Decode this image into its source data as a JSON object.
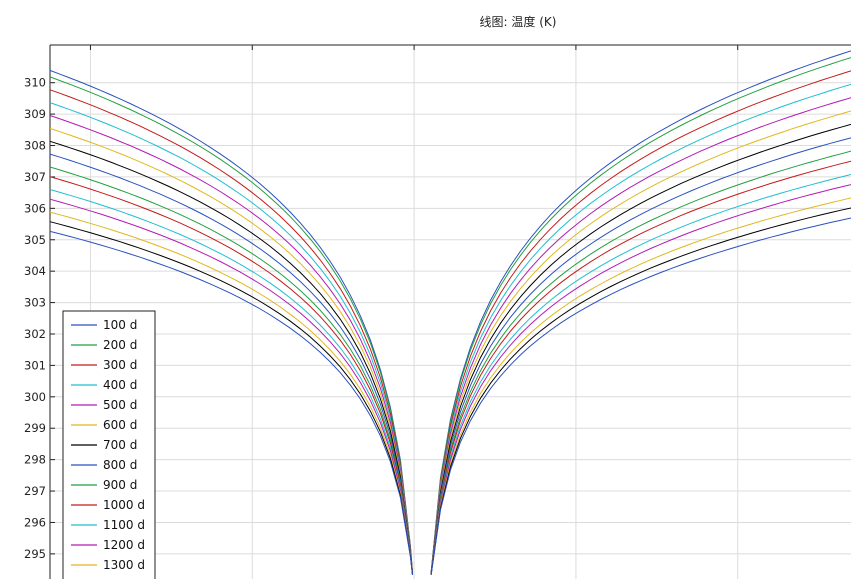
{
  "chart_data": {
    "type": "line",
    "title": "线图: 温度 (K)",
    "xlabel": "",
    "ylabel": "",
    "ylim": [
      294.2,
      311.2
    ],
    "xlim": [
      -0.05,
      0.94
    ],
    "yticks": [
      295,
      296,
      297,
      298,
      299,
      300,
      301,
      302,
      303,
      304,
      305,
      306,
      307,
      308,
      309,
      310
    ],
    "grid": true,
    "legend_position": "bottom-left",
    "series": [
      {
        "name": "100 d",
        "color": "#2a52be",
        "top_value": 310.0
      },
      {
        "name": "200 d",
        "color": "#22a040",
        "top_value": 309.8
      },
      {
        "name": "300 d",
        "color": "#c41a1a",
        "top_value": 309.4
      },
      {
        "name": "400 d",
        "color": "#1fbfcf",
        "top_value": 309.0
      },
      {
        "name": "500 d",
        "color": "#b51ab5",
        "top_value": 308.6
      },
      {
        "name": "600 d",
        "color": "#e0b81e",
        "top_value": 308.2
      },
      {
        "name": "700 d",
        "color": "#000000",
        "top_value": 307.8
      },
      {
        "name": "800 d",
        "color": "#2a52be",
        "top_value": 307.4
      },
      {
        "name": "900 d",
        "color": "#22a040",
        "top_value": 307.0
      },
      {
        "name": "1000 d",
        "color": "#c41a1a",
        "top_value": 306.7
      },
      {
        "name": "1100 d",
        "color": "#1fbfcf",
        "top_value": 306.3
      },
      {
        "name": "1200 d",
        "color": "#b51ab5",
        "top_value": 306.0
      },
      {
        "name": "1300 d",
        "color": "#e0b81e",
        "top_value": 305.6
      },
      {
        "name": "",
        "color": "#000000",
        "top_value": 305.3
      },
      {
        "name": "",
        "color": "#2a52be",
        "top_value": 305.0
      }
    ]
  }
}
